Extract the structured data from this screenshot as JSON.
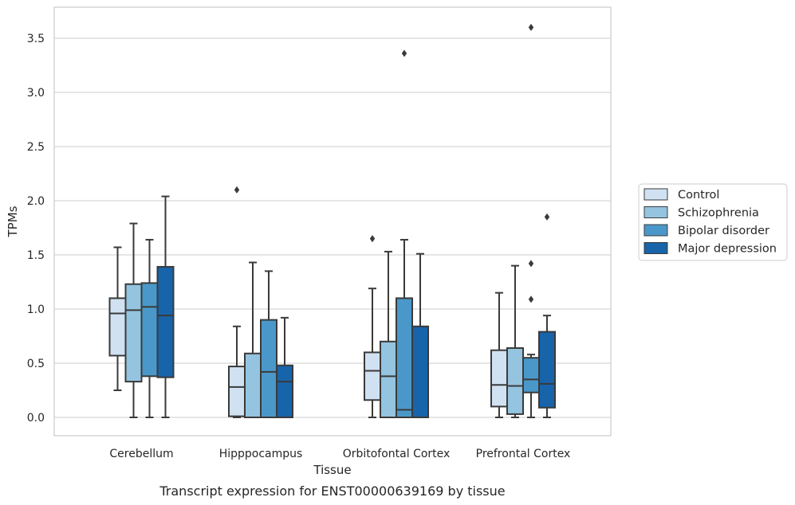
{
  "chart_data": {
    "type": "boxplot",
    "caption": "Transcript expression for ENST00000639169 by tissue",
    "xlabel": "Tissue",
    "ylabel": "TPMs",
    "ylim": [
      -0.17,
      3.77
    ],
    "yticks": [
      "0.0",
      "0.5",
      "1.0",
      "1.5",
      "2.0",
      "2.5",
      "3.0",
      "3.5"
    ],
    "grid": "horizontal",
    "legend_position": "right",
    "categories": [
      "Cerebellum",
      "Hipppocampus",
      "Orbitofontal Cortex",
      "Prefrontal Cortex"
    ],
    "series": [
      {
        "name": "Control",
        "color": "#d0e1f2",
        "boxes": [
          {
            "whislo": 0.25,
            "q1": 0.57,
            "med": 0.96,
            "q3": 1.1,
            "whishi": 1.57,
            "fliers": []
          },
          {
            "whislo": 0.0,
            "q1": 0.01,
            "med": 0.28,
            "q3": 0.47,
            "whishi": 0.84,
            "fliers": [
              2.1
            ]
          },
          {
            "whislo": 0.0,
            "q1": 0.16,
            "med": 0.43,
            "q3": 0.6,
            "whishi": 1.19,
            "fliers": [
              1.65
            ]
          },
          {
            "whislo": 0.0,
            "q1": 0.1,
            "med": 0.3,
            "q3": 0.62,
            "whishi": 1.15,
            "fliers": []
          }
        ]
      },
      {
        "name": "Schizophrenia",
        "color": "#94c4df",
        "boxes": [
          {
            "whislo": 0.0,
            "q1": 0.33,
            "med": 0.99,
            "q3": 1.23,
            "whishi": 1.79,
            "fliers": []
          },
          {
            "whislo": 0.0,
            "q1": 0.0,
            "med": 0.0,
            "q3": 0.59,
            "whishi": 1.43,
            "fliers": []
          },
          {
            "whislo": 0.0,
            "q1": 0.0,
            "med": 0.38,
            "q3": 0.7,
            "whishi": 1.53,
            "fliers": []
          },
          {
            "whislo": 0.0,
            "q1": 0.03,
            "med": 0.29,
            "q3": 0.64,
            "whishi": 1.4,
            "fliers": []
          }
        ]
      },
      {
        "name": "Bipolar disorder",
        "color": "#4a98c9",
        "boxes": [
          {
            "whislo": 0.0,
            "q1": 0.38,
            "med": 1.02,
            "q3": 1.24,
            "whishi": 1.64,
            "fliers": []
          },
          {
            "whislo": 0.0,
            "q1": 0.0,
            "med": 0.42,
            "q3": 0.9,
            "whishi": 1.35,
            "fliers": []
          },
          {
            "whislo": 0.0,
            "q1": 0.0,
            "med": 0.07,
            "q3": 1.1,
            "whishi": 1.64,
            "fliers": [
              3.36
            ]
          },
          {
            "whislo": 0.0,
            "q1": 0.23,
            "med": 0.35,
            "q3": 0.55,
            "whishi": 0.58,
            "fliers": [
              1.09,
              1.42,
              3.6
            ]
          }
        ]
      },
      {
        "name": "Major depression",
        "color": "#1764ab",
        "boxes": [
          {
            "whislo": 0.0,
            "q1": 0.37,
            "med": 0.94,
            "q3": 1.39,
            "whishi": 2.04,
            "fliers": []
          },
          {
            "whislo": 0.0,
            "q1": 0.0,
            "med": 0.33,
            "q3": 0.48,
            "whishi": 0.92,
            "fliers": []
          },
          {
            "whislo": 0.0,
            "q1": 0.0,
            "med": 0.0,
            "q3": 0.84,
            "whishi": 1.51,
            "fliers": []
          },
          {
            "whislo": 0.0,
            "q1": 0.09,
            "med": 0.31,
            "q3": 0.79,
            "whishi": 0.94,
            "fliers": [
              1.85
            ]
          }
        ]
      }
    ]
  }
}
